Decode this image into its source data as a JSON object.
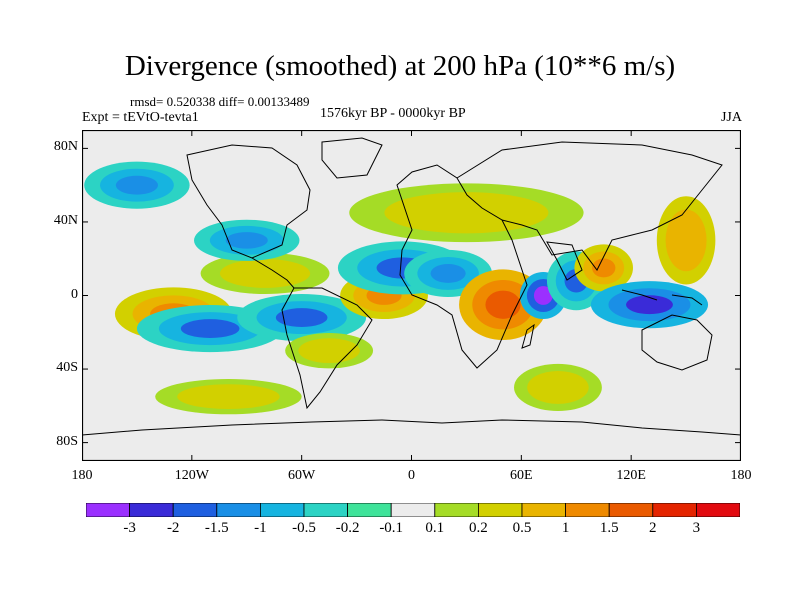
{
  "title": "Divergence (smoothed) at 200 hPa (10**6 m/s)",
  "stats": "rmsd= 0.520338 diff= 0.00133489",
  "expt": "Expt = tEVtO-tevta1",
  "period": "1576kyr BP - 0000kyr BP",
  "season": "JJA",
  "y_axis": {
    "ticks": [
      {
        "label": "80N",
        "lat": 80
      },
      {
        "label": "40N",
        "lat": 40
      },
      {
        "label": "0",
        "lat": 0
      },
      {
        "label": "40S",
        "lat": -40
      },
      {
        "label": "80S",
        "lat": -80
      }
    ]
  },
  "x_axis": {
    "ticks": [
      {
        "label": "180",
        "lon": -180
      },
      {
        "label": "120W",
        "lon": -120
      },
      {
        "label": "60W",
        "lon": -60
      },
      {
        "label": "0",
        "lon": 0
      },
      {
        "label": "60E",
        "lon": 60
      },
      {
        "label": "120E",
        "lon": 120
      },
      {
        "label": "180",
        "lon": 180
      }
    ]
  },
  "colorbar": {
    "labels": [
      "-3",
      "-2",
      "-1.5",
      "-1",
      "-0.5",
      "-0.2",
      "-0.1",
      "0.1",
      "0.2",
      "0.5",
      "1",
      "1.5",
      "2",
      "3"
    ],
    "colors": [
      "#9b30ff",
      "#3a2bd8",
      "#1f5fe0",
      "#1a8fe6",
      "#16b4e0",
      "#2cd3c4",
      "#3ee39a",
      "#ececec",
      "#a5dc26",
      "#d2d000",
      "#e9b400",
      "#ef8a00",
      "#ea5a00",
      "#e42400",
      "#e20a10"
    ]
  },
  "features": [
    {
      "name": "pos",
      "lon": -130,
      "lat": -10,
      "rx": 20,
      "ry": 9,
      "v": 1.5
    },
    {
      "name": "neg",
      "lon": -110,
      "lat": -18,
      "rx": 25,
      "ry": 8,
      "v": -1.5
    },
    {
      "name": "neg",
      "lon": -60,
      "lat": -12,
      "rx": 22,
      "ry": 8,
      "v": -1.5
    },
    {
      "name": "pos",
      "lon": -80,
      "lat": 12,
      "rx": 22,
      "ry": 7,
      "v": 0.5
    },
    {
      "name": "neg",
      "lon": -90,
      "lat": 30,
      "rx": 18,
      "ry": 7,
      "v": -1
    },
    {
      "name": "pos",
      "lon": -15,
      "lat": 0,
      "rx": 15,
      "ry": 8,
      "v": 1.5
    },
    {
      "name": "neg",
      "lon": -5,
      "lat": 15,
      "rx": 22,
      "ry": 9,
      "v": -1.5
    },
    {
      "name": "neg",
      "lon": 20,
      "lat": 12,
      "rx": 15,
      "ry": 8,
      "v": -1
    },
    {
      "name": "pos",
      "lon": 50,
      "lat": -5,
      "rx": 15,
      "ry": 12,
      "v": 2
    },
    {
      "name": "neg",
      "lon": 72,
      "lat": 0,
      "rx": 8,
      "ry": 8,
      "v": -3
    },
    {
      "name": "neg",
      "lon": 90,
      "lat": 8,
      "rx": 10,
      "ry": 10,
      "v": -1.5
    },
    {
      "name": "pos",
      "lon": 105,
      "lat": 15,
      "rx": 10,
      "ry": 8,
      "v": 1.5
    },
    {
      "name": "neg",
      "lon": 130,
      "lat": -5,
      "rx": 20,
      "ry": 8,
      "v": -2
    },
    {
      "name": "pos",
      "lon": 150,
      "lat": 30,
      "rx": 10,
      "ry": 15,
      "v": 1
    },
    {
      "name": "pos",
      "lon": 30,
      "lat": 45,
      "rx": 40,
      "ry": 10,
      "v": 0.5
    },
    {
      "name": "pos",
      "lon": -45,
      "lat": -30,
      "rx": 15,
      "ry": 6,
      "v": 0.5
    },
    {
      "name": "pos",
      "lon": -100,
      "lat": -55,
      "rx": 25,
      "ry": 6,
      "v": 0.5
    },
    {
      "name": "pos",
      "lon": 80,
      "lat": -50,
      "rx": 15,
      "ry": 8,
      "v": 0.5
    },
    {
      "name": "neg",
      "lon": -150,
      "lat": 60,
      "rx": 18,
      "ry": 8,
      "v": -1
    }
  ]
}
